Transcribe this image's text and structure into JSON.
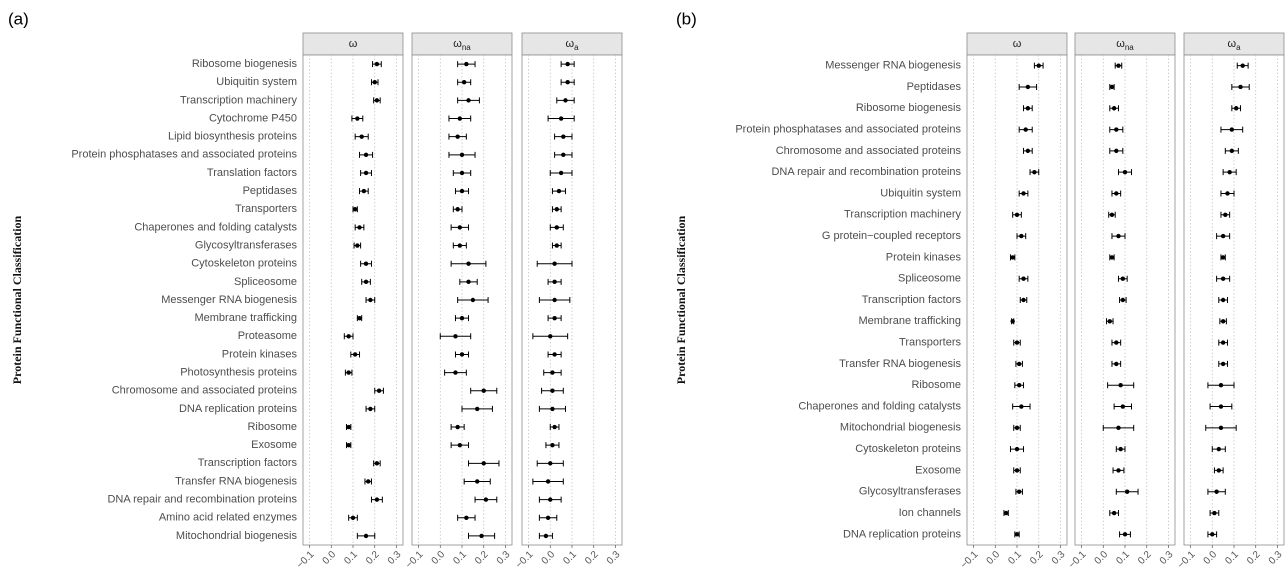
{
  "chart_data": [
    {
      "type": "errorbar",
      "panel_label": "(a)",
      "y_label": "Protein Functional Classification",
      "categories": [
        "Ribosome biogenesis",
        "Ubiquitin system",
        "Transcription machinery",
        "Cytochrome P450",
        "Lipid biosynthesis proteins",
        "Protein phosphatases and associated proteins",
        "Translation factors",
        "Peptidases",
        "Transporters",
        "Chaperones and folding catalysts",
        "Glycosyltransferases",
        "Cytoskeleton proteins",
        "Spliceosome",
        "Messenger RNA biogenesis",
        "Membrane trafficking",
        "Proteasome",
        "Protein kinases",
        "Photosynthesis proteins",
        "Chromosome and associated proteins",
        "DNA replication proteins",
        "Ribosome",
        "Exosome",
        "Transcription factors",
        "Transfer RNA biogenesis",
        "DNA repair and recombination proteins",
        "Amino acid related enzymes",
        "Mitochondrial biogenesis"
      ],
      "facets": [
        {
          "title": "ω",
          "subscript": null,
          "values": [
            0.21,
            0.2,
            0.21,
            0.12,
            0.14,
            0.16,
            0.16,
            0.15,
            0.11,
            0.13,
            0.12,
            0.16,
            0.16,
            0.18,
            0.13,
            0.08,
            0.11,
            0.08,
            0.22,
            0.18,
            0.08,
            0.08,
            0.21,
            0.17,
            0.21,
            0.1,
            0.16
          ],
          "errors": [
            0.02,
            0.015,
            0.015,
            0.025,
            0.03,
            0.03,
            0.025,
            0.02,
            0.01,
            0.02,
            0.015,
            0.025,
            0.02,
            0.02,
            0.01,
            0.02,
            0.02,
            0.015,
            0.02,
            0.02,
            0.01,
            0.01,
            0.015,
            0.015,
            0.025,
            0.02,
            0.04
          ]
        },
        {
          "title": "ω",
          "subscript": "na",
          "values": [
            0.12,
            0.11,
            0.13,
            0.09,
            0.08,
            0.1,
            0.1,
            0.1,
            0.08,
            0.09,
            0.09,
            0.13,
            0.13,
            0.15,
            0.1,
            0.07,
            0.1,
            0.07,
            0.2,
            0.17,
            0.08,
            0.09,
            0.2,
            0.17,
            0.21,
            0.12,
            0.19
          ],
          "errors": [
            0.04,
            0.03,
            0.05,
            0.05,
            0.04,
            0.06,
            0.04,
            0.03,
            0.02,
            0.04,
            0.03,
            0.08,
            0.04,
            0.07,
            0.03,
            0.07,
            0.03,
            0.05,
            0.06,
            0.07,
            0.03,
            0.04,
            0.07,
            0.06,
            0.05,
            0.04,
            0.06
          ]
        },
        {
          "title": "ω",
          "subscript": "a",
          "values": [
            0.08,
            0.08,
            0.07,
            0.05,
            0.06,
            0.06,
            0.05,
            0.04,
            0.03,
            0.03,
            0.03,
            0.02,
            0.02,
            0.02,
            0.02,
            0.0,
            0.02,
            0.01,
            0.01,
            0.01,
            0.02,
            0.01,
            0.0,
            -0.01,
            0.0,
            -0.01,
            -0.02
          ],
          "errors": [
            0.03,
            0.03,
            0.04,
            0.06,
            0.04,
            0.04,
            0.05,
            0.03,
            0.02,
            0.03,
            0.02,
            0.08,
            0.03,
            0.07,
            0.03,
            0.08,
            0.03,
            0.04,
            0.05,
            0.06,
            0.02,
            0.03,
            0.06,
            0.07,
            0.05,
            0.04,
            0.03
          ]
        }
      ],
      "xlim": [
        -0.13,
        0.33
      ],
      "xticks": [
        {
          "value": -0.1,
          "label": "−0.1"
        },
        {
          "value": 0,
          "label": "0.0"
        },
        0.1,
        0.2,
        0.3
      ],
      "grid": true,
      "color": "#000000"
    },
    {
      "type": "errorbar",
      "panel_label": "(b)",
      "y_label": "Protein Functional Classification",
      "categories": [
        "Messenger RNA biogenesis",
        "Peptidases",
        "Ribosome biogenesis",
        "Protein phosphatases and associated proteins",
        "Chromosome and associated proteins",
        "DNA repair and recombination proteins",
        "Ubiquitin system",
        "Transcription machinery",
        "G protein−coupled receptors",
        "Protein kinases",
        "Spliceosome",
        "Transcription factors",
        "Membrane trafficking",
        "Transporters",
        "Transfer RNA biogenesis",
        "Ribosome",
        "Chaperones and folding catalysts",
        "Mitochondrial biogenesis",
        "Cytoskeleton proteins",
        "Exosome",
        "Glycosyltransferases",
        "Ion channels",
        "DNA replication proteins"
      ],
      "facets": [
        {
          "title": "ω",
          "subscript": null,
          "values": [
            0.2,
            0.15,
            0.15,
            0.14,
            0.15,
            0.18,
            0.13,
            0.1,
            0.12,
            0.08,
            0.13,
            0.13,
            0.08,
            0.1,
            0.11,
            0.11,
            0.12,
            0.1,
            0.1,
            0.1,
            0.11,
            0.05,
            0.1
          ],
          "errors": [
            0.02,
            0.04,
            0.02,
            0.03,
            0.02,
            0.02,
            0.02,
            0.02,
            0.02,
            0.01,
            0.02,
            0.015,
            0.005,
            0.015,
            0.015,
            0.02,
            0.04,
            0.015,
            0.03,
            0.015,
            0.015,
            0.01,
            0.01
          ]
        },
        {
          "title": "ω",
          "subscript": "na",
          "values": [
            0.07,
            0.04,
            0.05,
            0.06,
            0.06,
            0.1,
            0.06,
            0.04,
            0.07,
            0.04,
            0.09,
            0.09,
            0.03,
            0.06,
            0.06,
            0.08,
            0.09,
            0.07,
            0.08,
            0.07,
            0.11,
            0.05,
            0.1
          ],
          "errors": [
            0.015,
            0.01,
            0.02,
            0.03,
            0.03,
            0.03,
            0.02,
            0.015,
            0.03,
            0.01,
            0.02,
            0.015,
            0.015,
            0.02,
            0.02,
            0.06,
            0.04,
            0.07,
            0.02,
            0.025,
            0.05,
            0.02,
            0.025
          ]
        },
        {
          "title": "ω",
          "subscript": "a",
          "values": [
            0.14,
            0.13,
            0.11,
            0.09,
            0.09,
            0.08,
            0.07,
            0.06,
            0.05,
            0.05,
            0.05,
            0.05,
            0.05,
            0.05,
            0.05,
            0.04,
            0.04,
            0.04,
            0.03,
            0.03,
            0.02,
            0.01,
            0.0
          ],
          "errors": [
            0.025,
            0.04,
            0.02,
            0.05,
            0.03,
            0.03,
            0.03,
            0.02,
            0.03,
            0.01,
            0.03,
            0.02,
            0.015,
            0.02,
            0.02,
            0.06,
            0.05,
            0.07,
            0.03,
            0.02,
            0.04,
            0.02,
            0.02
          ]
        }
      ],
      "xlim": [
        -0.13,
        0.33
      ],
      "xticks": [
        {
          "value": -0.1,
          "label": "−0.1"
        },
        {
          "value": 0,
          "label": "0.0"
        },
        0.1,
        0.2,
        0.3
      ],
      "grid": true,
      "color": "#000000"
    }
  ]
}
